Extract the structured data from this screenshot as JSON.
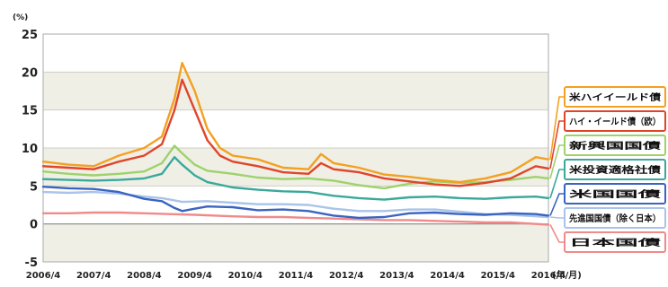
{
  "chart_data": {
    "type": "line",
    "title": "",
    "ylabel": "(%)",
    "xlabel": "(年/月)",
    "ylim": [
      -5,
      25
    ],
    "yticks": [
      "25",
      "20",
      "15",
      "10",
      "5",
      "0",
      "-5"
    ],
    "x_tick_labels": [
      "2006/4",
      "2007/4",
      "2008/4",
      "2009/4",
      "2010/4",
      "2011/4",
      "2012/4",
      "2013/4",
      "2014/4",
      "2015/4",
      "2016/4"
    ],
    "grid": true,
    "legend_position": "right",
    "series": [
      {
        "name": "米ハイイールド債",
        "color": "#f4a020",
        "x": [
          2006.25,
          2006.75,
          2007.25,
          2007.75,
          2008.25,
          2008.6,
          2008.85,
          2009.0,
          2009.25,
          2009.5,
          2009.75,
          2010.0,
          2010.5,
          2011.0,
          2011.5,
          2011.75,
          2012.0,
          2012.5,
          2013.0,
          2013.5,
          2014.0,
          2014.5,
          2015.0,
          2015.5,
          2016.0,
          2016.25
        ],
        "y": [
          8.2,
          7.8,
          7.6,
          9.0,
          10.0,
          11.5,
          16.5,
          21.2,
          17.5,
          12.5,
          10.0,
          9.0,
          8.5,
          7.4,
          7.2,
          9.2,
          8.0,
          7.4,
          6.5,
          6.2,
          5.8,
          5.5,
          6.0,
          6.8,
          8.8,
          8.5
        ]
      },
      {
        "name": "ハイ・イールド債（欧）",
        "color": "#e0452a",
        "x": [
          2006.25,
          2006.75,
          2007.25,
          2007.75,
          2008.25,
          2008.6,
          2008.85,
          2009.0,
          2009.25,
          2009.5,
          2009.75,
          2010.0,
          2010.5,
          2011.0,
          2011.5,
          2011.75,
          2012.0,
          2012.5,
          2013.0,
          2013.5,
          2014.0,
          2014.5,
          2015.0,
          2015.5,
          2016.0,
          2016.25
        ],
        "y": [
          7.6,
          7.4,
          7.2,
          8.2,
          9.0,
          10.5,
          15.0,
          19.0,
          15.0,
          11.0,
          9.0,
          8.2,
          7.6,
          6.8,
          6.6,
          8.0,
          7.2,
          6.8,
          6.0,
          5.6,
          5.2,
          5.0,
          5.4,
          6.0,
          7.6,
          7.3
        ]
      },
      {
        "name": "新興国国債",
        "color": "#9ed26a",
        "x": [
          2006.25,
          2006.75,
          2007.25,
          2007.75,
          2008.25,
          2008.6,
          2008.85,
          2009.0,
          2009.25,
          2009.5,
          2010.0,
          2010.5,
          2011.0,
          2011.5,
          2012.0,
          2012.5,
          2013.0,
          2013.5,
          2014.0,
          2014.5,
          2015.0,
          2015.5,
          2016.0,
          2016.25
        ],
        "y": [
          6.9,
          6.6,
          6.4,
          6.6,
          6.9,
          8.0,
          10.3,
          9.3,
          7.8,
          7.0,
          6.6,
          6.1,
          5.9,
          6.0,
          5.7,
          5.1,
          4.7,
          5.3,
          5.6,
          5.4,
          5.5,
          5.8,
          6.2,
          6.0
        ]
      },
      {
        "name": "米投資適格社債",
        "color": "#3aa89a",
        "x": [
          2006.25,
          2006.75,
          2007.25,
          2007.75,
          2008.25,
          2008.6,
          2008.85,
          2009.0,
          2009.25,
          2009.5,
          2010.0,
          2010.5,
          2011.0,
          2011.5,
          2012.0,
          2012.5,
          2013.0,
          2013.5,
          2014.0,
          2014.5,
          2015.0,
          2015.5,
          2016.0,
          2016.25
        ],
        "y": [
          5.9,
          5.8,
          5.7,
          5.8,
          6.0,
          6.6,
          8.8,
          7.8,
          6.4,
          5.5,
          4.8,
          4.5,
          4.3,
          4.2,
          3.7,
          3.4,
          3.2,
          3.5,
          3.6,
          3.4,
          3.3,
          3.5,
          3.6,
          3.4
        ]
      },
      {
        "name": "米国国債",
        "color": "#3a64c0",
        "x": [
          2006.25,
          2006.75,
          2007.25,
          2007.75,
          2008.25,
          2008.6,
          2008.85,
          2009.0,
          2009.25,
          2009.5,
          2010.0,
          2010.5,
          2011.0,
          2011.5,
          2012.0,
          2012.5,
          2013.0,
          2013.5,
          2014.0,
          2014.5,
          2015.0,
          2015.5,
          2016.0,
          2016.25
        ],
        "y": [
          4.9,
          4.7,
          4.6,
          4.2,
          3.3,
          3.0,
          2.1,
          1.7,
          2.0,
          2.3,
          2.2,
          1.8,
          1.9,
          1.7,
          1.1,
          0.8,
          0.9,
          1.4,
          1.5,
          1.3,
          1.2,
          1.4,
          1.3,
          1.1
        ]
      },
      {
        "name": "先進国国債（除く日本）",
        "color": "#a9c3ea",
        "x": [
          2006.25,
          2006.75,
          2007.25,
          2007.75,
          2008.25,
          2008.6,
          2008.85,
          2009.0,
          2009.5,
          2010.0,
          2010.5,
          2011.0,
          2011.5,
          2012.0,
          2012.5,
          2013.0,
          2013.5,
          2014.0,
          2014.5,
          2015.0,
          2015.5,
          2016.0,
          2016.25
        ],
        "y": [
          4.2,
          4.1,
          4.2,
          4.0,
          3.6,
          3.4,
          3.1,
          2.9,
          3.0,
          2.8,
          2.6,
          2.6,
          2.5,
          2.0,
          1.7,
          1.7,
          1.9,
          1.9,
          1.6,
          1.3,
          1.2,
          1.0,
          0.9
        ]
      },
      {
        "name": "日本国債",
        "color": "#f08a8a",
        "x": [
          2006.25,
          2006.75,
          2007.25,
          2007.75,
          2008.25,
          2008.75,
          2009.25,
          2010.0,
          2010.5,
          2011.0,
          2011.5,
          2012.0,
          2012.5,
          2013.0,
          2013.5,
          2014.0,
          2014.5,
          2015.0,
          2015.5,
          2016.0,
          2016.25
        ],
        "y": [
          1.4,
          1.4,
          1.5,
          1.5,
          1.4,
          1.3,
          1.2,
          1.0,
          0.9,
          0.9,
          0.8,
          0.7,
          0.6,
          0.5,
          0.5,
          0.4,
          0.3,
          0.2,
          0.2,
          0.0,
          -0.1
        ]
      }
    ],
    "legend_labels": [
      "米ハイイールド債",
      "ハイ・イールド債（欧）",
      "新興国国債",
      "米投資適格社債",
      "米国国債",
      "先進国国債（除く日本）",
      "日本国債"
    ]
  }
}
